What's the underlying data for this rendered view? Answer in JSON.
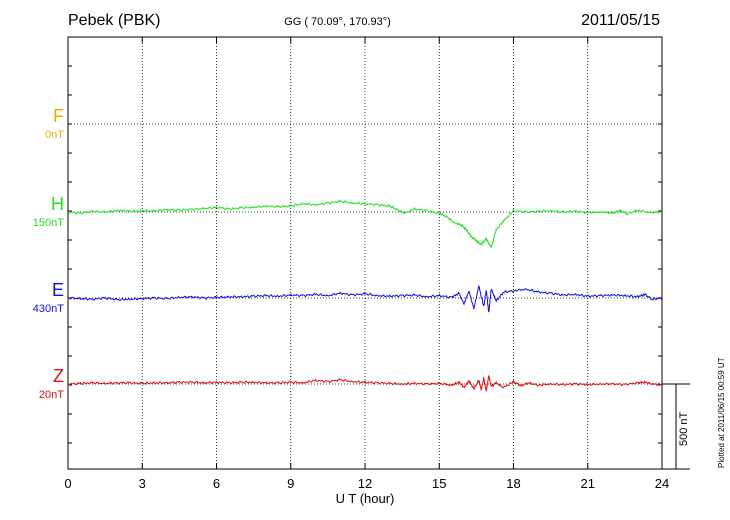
{
  "header": {
    "station": "Pebek (PBK)",
    "coords": "GG ( 70.09°, 170.93°)",
    "date": "2011/05/15"
  },
  "footer": {
    "xlabel": "U T (hour)",
    "plotted": "Plotted at 2011/06/15 00:59 UT",
    "scale_label": "500 nT"
  },
  "chart_data": {
    "type": "line",
    "title": "Pebek (PBK) 2011/05/15",
    "xlabel": "U T (hour)",
    "xlim": [
      0,
      24
    ],
    "xticks": [
      0,
      3,
      6,
      9,
      12,
      15,
      18,
      21,
      24
    ],
    "xtick_labels": [
      "0",
      "3",
      "6",
      "9",
      "12",
      "15",
      "18",
      "21",
      "24"
    ],
    "scale_bar_nT": 500,
    "channels": [
      {
        "name": "F",
        "scale": "0nT",
        "color": "#f2a900",
        "baseline": 0,
        "series": null
      },
      {
        "name": "H",
        "scale": "150nT",
        "color": "#22dd22",
        "baseline": 0,
        "x": [
          0,
          0.5,
          1,
          1.5,
          2,
          2.5,
          3,
          3.5,
          4,
          4.5,
          5,
          5.5,
          6,
          6.5,
          7,
          7.5,
          8,
          8.5,
          9,
          9.5,
          10,
          10.5,
          11,
          11.5,
          12,
          12.5,
          13,
          13.3,
          13.6,
          14,
          14.5,
          15,
          15.3,
          15.6,
          15.9,
          16.1,
          16.3,
          16.5,
          16.7,
          16.9,
          17.1,
          17.3,
          17.6,
          18,
          18.5,
          19,
          19.5,
          20,
          20.5,
          21,
          21.5,
          22,
          22.3,
          22.6,
          23,
          23.5,
          24
        ],
        "values": [
          0,
          -2,
          1,
          0,
          3,
          1,
          2,
          2,
          4,
          3,
          4,
          6,
          8,
          5,
          7,
          8,
          10,
          9,
          10,
          14,
          12,
          15,
          18,
          15,
          14,
          12,
          10,
          4,
          -2,
          5,
          2,
          -2,
          -8,
          -18,
          -22,
          -30,
          -42,
          -48,
          -55,
          -45,
          -60,
          -30,
          -15,
          2,
          0,
          1,
          2,
          0,
          1,
          -1,
          0,
          -2,
          2,
          -3,
          3,
          -1,
          0
        ]
      },
      {
        "name": "E",
        "scale": "430nT",
        "color": "#1010dd",
        "baseline": 0,
        "x": [
          0,
          0.5,
          1,
          1.5,
          2,
          2.5,
          3,
          3.5,
          4,
          4.5,
          5,
          5.5,
          6,
          6.5,
          7,
          7.5,
          8,
          8.5,
          9,
          9.5,
          10,
          10.5,
          11,
          11.5,
          12,
          12.5,
          13,
          13.5,
          14,
          14.5,
          15,
          15.5,
          15.8,
          16,
          16.2,
          16.4,
          16.6,
          16.8,
          16.9,
          17,
          17.1,
          17.3,
          17.6,
          18,
          18.5,
          19,
          19.5,
          20,
          20.5,
          21,
          21.5,
          22,
          22.5,
          23,
          23.3,
          23.6,
          24
        ],
        "values": [
          0,
          -1,
          -2,
          0,
          -3,
          -2,
          -1,
          0,
          -1,
          1,
          2,
          0,
          1,
          2,
          2,
          3,
          4,
          3,
          5,
          4,
          6,
          4,
          8,
          5,
          7,
          4,
          3,
          4,
          5,
          2,
          4,
          1,
          8,
          -10,
          12,
          -18,
          20,
          -15,
          14,
          -25,
          15,
          -5,
          10,
          12,
          15,
          10,
          8,
          5,
          6,
          3,
          4,
          5,
          4,
          2,
          6,
          -2,
          0
        ]
      },
      {
        "name": "Z",
        "scale": "20nT",
        "color": "#dd1111",
        "baseline": 0,
        "x": [
          0,
          0.5,
          1,
          1.5,
          2,
          2.5,
          3,
          3.5,
          4,
          4.5,
          5,
          5.5,
          6,
          6.5,
          7,
          7.5,
          8,
          8.5,
          9,
          9.5,
          10,
          10.5,
          11,
          11.5,
          12,
          12.5,
          13,
          13.5,
          14,
          14.5,
          15,
          15.5,
          15.8,
          16,
          16.2,
          16.4,
          16.6,
          16.7,
          16.8,
          16.9,
          17,
          17.1,
          17.3,
          17.6,
          18,
          18.3,
          18.6,
          19,
          19.5,
          20,
          20.5,
          21,
          21.5,
          22,
          22.5,
          23,
          23.3,
          23.6,
          24
        ],
        "values": [
          0,
          1,
          2,
          1,
          2,
          2,
          1,
          2,
          2,
          3,
          3,
          2,
          3,
          2,
          3,
          3,
          2,
          2,
          3,
          2,
          6,
          4,
          7,
          4,
          3,
          2,
          1,
          0,
          1,
          0,
          1,
          -2,
          3,
          -6,
          5,
          -8,
          6,
          -10,
          10,
          -12,
          14,
          -4,
          2,
          -6,
          4,
          -3,
          2,
          -2,
          0,
          -1,
          0,
          -1,
          0,
          0,
          -1,
          2,
          3,
          0,
          -1
        ]
      }
    ]
  }
}
